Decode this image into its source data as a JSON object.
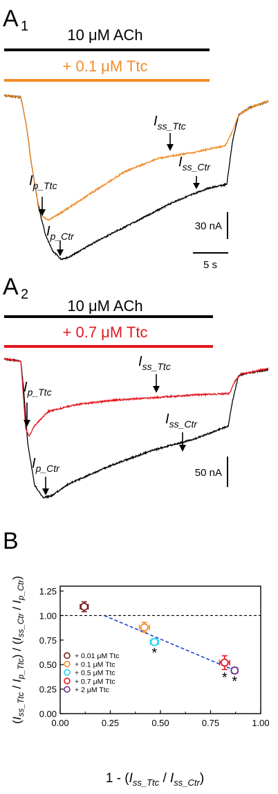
{
  "panel_a1": {
    "label": "A",
    "sub": "1",
    "ach_label": "10 μM ACh",
    "ttc_label": "+ 0.1 μM Ttc",
    "ttc_color": "#f28c28",
    "arrows": {
      "ss_ttc": {
        "main": "I",
        "sub": "ss_Ttc"
      },
      "ss_ctr": {
        "main": "I",
        "sub": "ss_Ctr"
      },
      "p_ttc": {
        "main": "I",
        "sub": "p_Ttc"
      },
      "p_ctr": {
        "main": "I",
        "sub": "p_Ctr"
      }
    },
    "scale_current": "30 nA",
    "scale_time": "5 s"
  },
  "panel_a2": {
    "label": "A",
    "sub": "2",
    "ach_label": "10 μM ACh",
    "ttc_label": "+ 0.7 μM Ttc",
    "ttc_color": "#e3171f",
    "arrows": {
      "ss_ttc": {
        "main": "I",
        "sub": "ss_Ttc"
      },
      "ss_ctr": {
        "main": "I",
        "sub": "ss_Ctr"
      },
      "p_ttc": {
        "main": "I",
        "sub": "p_Ttc"
      },
      "p_ctr": {
        "main": "I",
        "sub": "p_Ctr"
      }
    },
    "scale_current": "50 nA"
  },
  "panel_b": {
    "label": "B",
    "asterisk": "*"
  },
  "chart_data": {
    "type": "scatter",
    "xlabel": "1 - (Iss_Ttc / Iss_Ctr)",
    "ylabel": "(Iss_Ttc / Ip_Ttc) / (Iss_Ctr / Ip_Ctr)",
    "xlim": [
      0.0,
      1.0
    ],
    "ylim": [
      0.0,
      1.3
    ],
    "xticks": [
      "0.00",
      "0.25",
      "0.50",
      "0.75",
      "1.00"
    ],
    "yticks": [
      "0.00",
      "0.25",
      "0.50",
      "0.75",
      "1.00",
      "1.25"
    ],
    "reference_line_y": 1.0,
    "fit_line": {
      "x": [
        0.22,
        0.86
      ],
      "y": [
        1.0,
        0.45
      ],
      "color": "#1f3fd6"
    },
    "legend_position": "bottom-left",
    "series": [
      {
        "name": "+ 0.01 μM Ttc",
        "color": "#7a1b1b",
        "x": 0.12,
        "y": 1.09,
        "xerr": 0.02,
        "yerr": 0.05,
        "significant": false
      },
      {
        "name": "+ 0.1 μM Ttc",
        "color": "#f28c28",
        "x": 0.42,
        "y": 0.88,
        "xerr": 0.025,
        "yerr": 0.05,
        "significant": false
      },
      {
        "name": "+ 0.5 μM Ttc",
        "color": "#24d3ee",
        "x": 0.47,
        "y": 0.73,
        "xerr": 0.02,
        "yerr": 0.03,
        "significant": true
      },
      {
        "name": "+ 0.7 μM Ttc",
        "color": "#e3171f",
        "x": 0.82,
        "y": 0.52,
        "xerr": 0.025,
        "yerr": 0.07,
        "significant": true
      },
      {
        "name": "+ 2 μM Ttc",
        "color": "#6a2d91",
        "x": 0.87,
        "y": 0.44,
        "xerr": 0.015,
        "yerr": 0.03,
        "significant": true
      }
    ]
  }
}
